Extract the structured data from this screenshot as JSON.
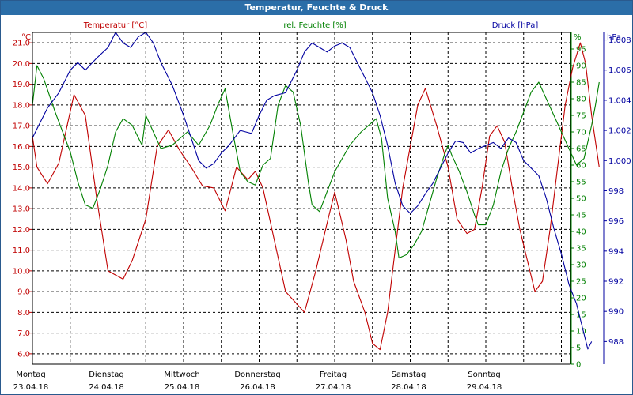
{
  "window": {
    "title": "Temperatur, Feuchte & Druck"
  },
  "chart_data": {
    "type": "line",
    "title": "Temperatur, Feuchte & Druck",
    "grid": true,
    "colors": {
      "temperature": "#c00000",
      "humidity": "#008000",
      "pressure": "#0000a0",
      "grid": "#000000"
    },
    "x_range": [
      "23.04.18 00:00",
      "29.04.18 ~23:00"
    ],
    "x_ticks": [
      {
        "day": "Montag",
        "date": "23.04.18",
        "t": 0
      },
      {
        "day": "Dienstag",
        "date": "24.04.18",
        "t": 1
      },
      {
        "day": "Mittwoch",
        "date": "25.04.18",
        "t": 2
      },
      {
        "day": "Donnerstag",
        "date": "26.04.18",
        "t": 3
      },
      {
        "day": "Freitag",
        "date": "27.04.18",
        "t": 4
      },
      {
        "day": "Samstag",
        "date": "28.04.18",
        "t": 5
      },
      {
        "day": "Sonntag",
        "date": "29.04.18",
        "t": 6
      }
    ],
    "axes": {
      "left": {
        "unit": "°C",
        "label": "Temperatur [°C]",
        "ylim": [
          5.5,
          21.5
        ],
        "ticks": [
          "6.0",
          "7.0",
          "8.0",
          "9.0",
          "10.0",
          "11.0",
          "12.0",
          "13.0",
          "14.0",
          "15.0",
          "16.0",
          "17.0",
          "18.0",
          "19.0",
          "20.0",
          "21.0"
        ]
      },
      "right1": {
        "unit": "%",
        "label": "rel. Feuchte [%]",
        "ylim": [
          0,
          100
        ],
        "ticks": [
          "0",
          "5",
          "10",
          "15",
          "20",
          "25",
          "30",
          "35",
          "40",
          "45",
          "50",
          "55",
          "60",
          "65",
          "70",
          "75",
          "80",
          "85",
          "90",
          "95"
        ]
      },
      "right2": {
        "unit": "hPa",
        "label": "Druck [hPa]",
        "ylim": [
          986.5,
          1008.5
        ],
        "ticks": [
          "988",
          "990",
          "992",
          "994",
          "996",
          "998",
          "1.000",
          "1.002",
          "1.004",
          "1.006",
          "1.008"
        ]
      }
    },
    "series": [
      {
        "name": "Temperatur [°C]",
        "axis": "left",
        "color": "#c00000",
        "points": [
          [
            0,
            16.5
          ],
          [
            0.06,
            15.0
          ],
          [
            0.2,
            14.2
          ],
          [
            0.35,
            15.2
          ],
          [
            0.55,
            18.5
          ],
          [
            0.7,
            17.5
          ],
          [
            0.85,
            13.5
          ],
          [
            1.0,
            10.0
          ],
          [
            1.2,
            9.6
          ],
          [
            1.32,
            10.5
          ],
          [
            1.5,
            12.5
          ],
          [
            1.65,
            16.0
          ],
          [
            1.8,
            16.8
          ],
          [
            1.95,
            15.8
          ],
          [
            2.1,
            15.0
          ],
          [
            2.25,
            14.1
          ],
          [
            2.4,
            14.0
          ],
          [
            2.55,
            12.9
          ],
          [
            2.7,
            15.0
          ],
          [
            2.85,
            14.4
          ],
          [
            2.95,
            14.8
          ],
          [
            3.05,
            14.0
          ],
          [
            3.2,
            11.5
          ],
          [
            3.35,
            9.0
          ],
          [
            3.5,
            8.4
          ],
          [
            3.6,
            8.0
          ],
          [
            3.75,
            10.0
          ],
          [
            3.9,
            12.3
          ],
          [
            4.0,
            13.8
          ],
          [
            4.15,
            11.5
          ],
          [
            4.25,
            9.5
          ],
          [
            4.4,
            8.0
          ],
          [
            4.5,
            6.5
          ],
          [
            4.6,
            6.2
          ],
          [
            4.7,
            8.0
          ],
          [
            4.8,
            11.0
          ],
          [
            4.9,
            14.0
          ],
          [
            5.0,
            16.0
          ],
          [
            5.1,
            18.0
          ],
          [
            5.2,
            18.8
          ],
          [
            5.35,
            17.0
          ],
          [
            5.5,
            15.0
          ],
          [
            5.62,
            12.5
          ],
          [
            5.75,
            11.8
          ],
          [
            5.85,
            12.0
          ],
          [
            5.95,
            14.0
          ],
          [
            6.05,
            16.5
          ],
          [
            6.15,
            17.0
          ],
          [
            6.25,
            16.2
          ],
          [
            6.35,
            14.0
          ],
          [
            6.45,
            12.0
          ],
          [
            6.55,
            10.5
          ],
          [
            6.65,
            9.0
          ],
          [
            6.75,
            9.5
          ],
          [
            6.85,
            12.0
          ],
          [
            6.95,
            15.0
          ],
          [
            7.05,
            18.0
          ],
          [
            7.15,
            19.8
          ],
          [
            7.25,
            21.0
          ],
          [
            7.32,
            20.0
          ],
          [
            7.4,
            17.5
          ],
          [
            7.5,
            15.0
          ]
        ]
      },
      {
        "name": "rel. Feuchte [%]",
        "axis": "right1",
        "color": "#008000",
        "points": [
          [
            0,
            78
          ],
          [
            0.06,
            90
          ],
          [
            0.15,
            86
          ],
          [
            0.3,
            76
          ],
          [
            0.4,
            70
          ],
          [
            0.5,
            64
          ],
          [
            0.6,
            55
          ],
          [
            0.7,
            48
          ],
          [
            0.8,
            47
          ],
          [
            0.9,
            53
          ],
          [
            1.0,
            60
          ],
          [
            1.1,
            70
          ],
          [
            1.2,
            74
          ],
          [
            1.32,
            72
          ],
          [
            1.45,
            66
          ],
          [
            1.5,
            75
          ],
          [
            1.6,
            70
          ],
          [
            1.7,
            65
          ],
          [
            1.85,
            66
          ],
          [
            1.95,
            68
          ],
          [
            2.05,
            70
          ],
          [
            2.2,
            66
          ],
          [
            2.35,
            72
          ],
          [
            2.45,
            78
          ],
          [
            2.55,
            83
          ],
          [
            2.65,
            70
          ],
          [
            2.75,
            58
          ],
          [
            2.85,
            55
          ],
          [
            2.95,
            54
          ],
          [
            3.05,
            60
          ],
          [
            3.15,
            62
          ],
          [
            3.25,
            78
          ],
          [
            3.35,
            84
          ],
          [
            3.45,
            82
          ],
          [
            3.55,
            72
          ],
          [
            3.65,
            55
          ],
          [
            3.7,
            48
          ],
          [
            3.8,
            46
          ],
          [
            3.9,
            52
          ],
          [
            4.0,
            58
          ],
          [
            4.1,
            62
          ],
          [
            4.2,
            66
          ],
          [
            4.35,
            70
          ],
          [
            4.45,
            72
          ],
          [
            4.55,
            74
          ],
          [
            4.62,
            68
          ],
          [
            4.7,
            50
          ],
          [
            4.8,
            40
          ],
          [
            4.85,
            32
          ],
          [
            4.95,
            33
          ],
          [
            5.05,
            36
          ],
          [
            5.15,
            40
          ],
          [
            5.25,
            48
          ],
          [
            5.35,
            56
          ],
          [
            5.45,
            63
          ],
          [
            5.5,
            66
          ],
          [
            5.55,
            63
          ],
          [
            5.65,
            58
          ],
          [
            5.75,
            52
          ],
          [
            5.85,
            45
          ],
          [
            5.9,
            42
          ],
          [
            6.0,
            42
          ],
          [
            6.1,
            48
          ],
          [
            6.2,
            58
          ],
          [
            6.3,
            65
          ],
          [
            6.4,
            70
          ],
          [
            6.5,
            76
          ],
          [
            6.6,
            82
          ],
          [
            6.7,
            85
          ],
          [
            6.8,
            80
          ],
          [
            6.9,
            75
          ],
          [
            7.0,
            70
          ],
          [
            7.1,
            65
          ],
          [
            7.2,
            60
          ],
          [
            7.3,
            62
          ],
          [
            7.4,
            72
          ],
          [
            7.45,
            78
          ],
          [
            7.5,
            85
          ]
        ]
      },
      {
        "name": "Druck [hPa]",
        "axis": "right2",
        "color": "#0000a0",
        "points": [
          [
            0,
            1001.5
          ],
          [
            0.1,
            1002.5
          ],
          [
            0.2,
            1003.5
          ],
          [
            0.35,
            1004.5
          ],
          [
            0.5,
            1006.0
          ],
          [
            0.6,
            1006.5
          ],
          [
            0.7,
            1006.0
          ],
          [
            0.85,
            1006.8
          ],
          [
            1.0,
            1007.5
          ],
          [
            1.1,
            1008.5
          ],
          [
            1.2,
            1007.8
          ],
          [
            1.3,
            1007.5
          ],
          [
            1.4,
            1008.2
          ],
          [
            1.5,
            1008.5
          ],
          [
            1.6,
            1007.8
          ],
          [
            1.7,
            1006.5
          ],
          [
            1.85,
            1005.0
          ],
          [
            2.0,
            1003.0
          ],
          [
            2.1,
            1001.5
          ],
          [
            2.2,
            1000.0
          ],
          [
            2.3,
            999.5
          ],
          [
            2.4,
            999.8
          ],
          [
            2.5,
            1000.5
          ],
          [
            2.6,
            1001.0
          ],
          [
            2.75,
            1002.0
          ],
          [
            2.9,
            1001.8
          ],
          [
            3.0,
            1003.0
          ],
          [
            3.1,
            1004.0
          ],
          [
            3.2,
            1004.3
          ],
          [
            3.35,
            1004.5
          ],
          [
            3.5,
            1006.0
          ],
          [
            3.6,
            1007.2
          ],
          [
            3.7,
            1007.8
          ],
          [
            3.8,
            1007.5
          ],
          [
            3.9,
            1007.2
          ],
          [
            4.0,
            1007.6
          ],
          [
            4.1,
            1007.8
          ],
          [
            4.2,
            1007.5
          ],
          [
            4.3,
            1006.5
          ],
          [
            4.4,
            1005.5
          ],
          [
            4.5,
            1004.5
          ],
          [
            4.6,
            1003.0
          ],
          [
            4.7,
            1001.0
          ],
          [
            4.8,
            998.5
          ],
          [
            4.9,
            997.0
          ],
          [
            5.0,
            996.5
          ],
          [
            5.1,
            997.0
          ],
          [
            5.2,
            997.8
          ],
          [
            5.3,
            998.5
          ],
          [
            5.4,
            999.5
          ],
          [
            5.5,
            1000.5
          ],
          [
            5.6,
            1001.3
          ],
          [
            5.7,
            1001.2
          ],
          [
            5.8,
            1000.5
          ],
          [
            5.9,
            1000.8
          ],
          [
            6.0,
            1001.0
          ],
          [
            6.1,
            1001.2
          ],
          [
            6.2,
            1000.8
          ],
          [
            6.3,
            1001.5
          ],
          [
            6.4,
            1001.2
          ],
          [
            6.5,
            1000.0
          ],
          [
            6.6,
            999.5
          ],
          [
            6.7,
            999.0
          ],
          [
            6.8,
            997.5
          ],
          [
            6.9,
            995.5
          ],
          [
            7.0,
            993.8
          ],
          [
            7.1,
            991.8
          ],
          [
            7.2,
            990.5
          ],
          [
            7.3,
            988.5
          ],
          [
            7.35,
            987.5
          ],
          [
            7.4,
            988.0
          ]
        ]
      }
    ]
  }
}
